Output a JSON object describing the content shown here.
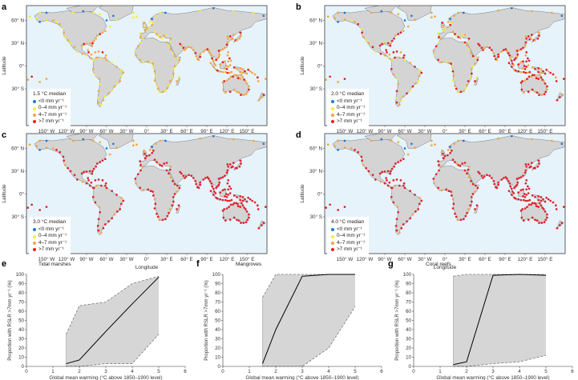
{
  "panels": {
    "a": "a",
    "b": "b",
    "c": "c",
    "d": "d",
    "e": "e",
    "f": "f",
    "g": "g"
  },
  "maps": [
    {
      "letter": "a",
      "scenario": "1.5 °C median",
      "emphasis": "low"
    },
    {
      "letter": "b",
      "scenario": "2.0 °C median",
      "emphasis": "mid"
    },
    {
      "letter": "c",
      "scenario": "3.0 °C median",
      "emphasis": "high"
    },
    {
      "letter": "d",
      "scenario": "4.0 °C median",
      "emphasis": "high"
    }
  ],
  "map_axes": {
    "lat_ticks": [
      "60° N",
      "30° N",
      "0°",
      "30° S"
    ],
    "lon_ticks": [
      "150° W",
      "120° W",
      "90° W",
      "60° W",
      "30° W",
      "0°",
      "30° E",
      "60° E",
      "90° E",
      "120° E",
      "150° E"
    ],
    "latitude_label": "Latitude",
    "longitude_label": "Longitude"
  },
  "legend_items": [
    {
      "label": "<0 mm yr⁻¹",
      "color": "#1f78d1"
    },
    {
      "label": "0–4 mm yr⁻¹",
      "color": "#f2ee3c"
    },
    {
      "label": "4–7 mm yr⁻¹",
      "color": "#f3a640"
    },
    {
      "label": ">7 mm yr⁻¹",
      "color": "#e0212a"
    }
  ],
  "colors": {
    "ocean": "#e6f3fb",
    "land": "#d4d4d4",
    "coast": "#555555",
    "band": "#d6d6d6",
    "median_line": "#000000"
  },
  "chart_data": [
    {
      "type": "line",
      "letter": "e",
      "title": "Tidal marshes",
      "xlabel": "Global mean warming (°C above 1850–1900 level)",
      "ylabel": "Proportion with RSLR >7mm yr⁻¹ (%)",
      "xlim": [
        0,
        6
      ],
      "ylim": [
        0,
        100
      ],
      "xticks": [
        0,
        1,
        2,
        3,
        4,
        5,
        6
      ],
      "yticks": [
        0,
        10,
        20,
        30,
        40,
        50,
        60,
        70,
        80,
        90,
        100
      ],
      "x": [
        1.5,
        2,
        3,
        4,
        5
      ],
      "series": [
        {
          "role": "median",
          "values": [
            3,
            7,
            38,
            68,
            97
          ]
        },
        {
          "role": "upper",
          "values": [
            35,
            66,
            70,
            90,
            98
          ]
        },
        {
          "role": "lower",
          "values": [
            0,
            0,
            3,
            3,
            35
          ]
        }
      ]
    },
    {
      "type": "line",
      "letter": "f",
      "title": "Mangroves",
      "xlabel": "Global mean warming (°C above 1850–1900 level)",
      "ylabel": "Proportion with RSLR >7mm yr⁻¹ (%)",
      "xlim": [
        0,
        6
      ],
      "ylim": [
        0,
        100
      ],
      "xticks": [
        0,
        1,
        2,
        3,
        4,
        5,
        6
      ],
      "yticks": [
        0,
        10,
        20,
        30,
        40,
        50,
        60,
        70,
        80,
        90,
        100
      ],
      "x": [
        1.5,
        2,
        3,
        4,
        5
      ],
      "series": [
        {
          "role": "median",
          "values": [
            3,
            40,
            98,
            100,
            100
          ]
        },
        {
          "role": "upper",
          "values": [
            75,
            100,
            100,
            100,
            100
          ]
        },
        {
          "role": "lower",
          "values": [
            0,
            0,
            0,
            20,
            65
          ]
        }
      ]
    },
    {
      "type": "line",
      "letter": "g",
      "title": "Coral reefs",
      "xlabel": "Global mean warming (°C above 1850–1900 level)",
      "ylabel": "Proportion with RSLR >7mm yr⁻¹ (%)",
      "xlim": [
        0,
        6
      ],
      "ylim": [
        0,
        100
      ],
      "xticks": [
        0,
        1,
        2,
        3,
        4,
        5,
        6
      ],
      "yticks": [
        0,
        10,
        20,
        30,
        40,
        50,
        60,
        70,
        80,
        90,
        100
      ],
      "x": [
        1.5,
        2,
        3,
        4,
        5
      ],
      "series": [
        {
          "role": "median",
          "values": [
            2,
            5,
            99,
            100,
            99
          ]
        },
        {
          "role": "upper",
          "values": [
            98,
            100,
            100,
            100,
            100
          ]
        },
        {
          "role": "lower",
          "values": [
            0,
            0,
            3,
            5,
            12
          ]
        }
      ]
    }
  ]
}
